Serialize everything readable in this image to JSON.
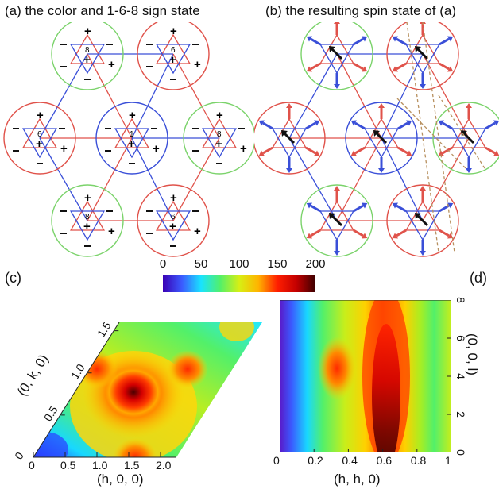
{
  "panel_a": {
    "title": "(a) the color and 1-6-8 sign state"
  },
  "panel_b": {
    "title": "(b) the resulting spin state of (a)"
  },
  "panel_c": {
    "letter": "(c)",
    "xlabel": "(h, 0, 0)",
    "ylabel": "(0, k, 0)",
    "xticks": [
      "0",
      "0.5",
      "1.0",
      "1.5",
      "2.0"
    ],
    "yticks": [
      "0",
      "0.5",
      "1.0",
      "1.5"
    ]
  },
  "panel_d": {
    "letter": "(d)",
    "xlabel": "(h, h, 0)",
    "ylabel": "(0, 0, l)",
    "xticks": [
      "0",
      "0.2",
      "0.4",
      "0.6",
      "0.8",
      "1"
    ],
    "yticks": [
      "0",
      "2",
      "4",
      "6",
      "8"
    ]
  },
  "colorbar": {
    "ticks": [
      "0",
      "50",
      "100",
      "150",
      "200"
    ],
    "colors": [
      "#3a00b4",
      "#3b5bff",
      "#19e3ff",
      "#52f06a",
      "#d7ef14",
      "#ffb400",
      "#ff1e00",
      "#c40000",
      "#3c0000"
    ]
  },
  "diagram": {
    "circle_colors": {
      "green": "#7bd36b",
      "red": "#e0524a",
      "blue": "#3a4fd8"
    },
    "triangle_colors": {
      "red": "#e0524a",
      "blue": "#3a4fd8"
    },
    "hexagon_circles": [
      {
        "color": "green",
        "label": "8"
      },
      {
        "color": "red",
        "label": "6"
      },
      {
        "color": "red",
        "label": "6"
      },
      {
        "color": "blue",
        "label": "1"
      },
      {
        "color": "green",
        "label": "8"
      },
      {
        "color": "green",
        "label": "8"
      },
      {
        "color": "red",
        "label": "6"
      }
    ]
  }
}
